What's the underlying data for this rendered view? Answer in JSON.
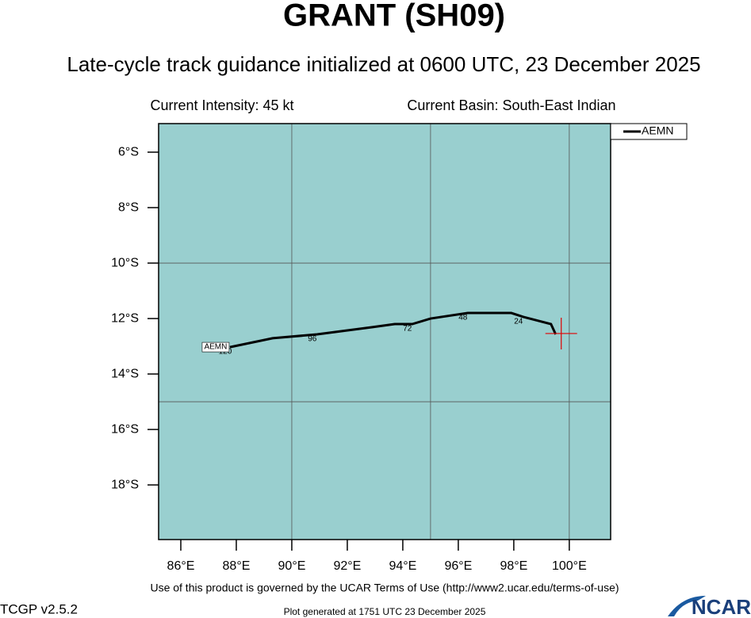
{
  "title": "GRANT (SH09)",
  "subtitle": "Late-cycle track guidance initialized at 0600 UTC, 23 December 2025",
  "info": {
    "intensity": "Current Intensity: 45 kt",
    "basin": "Current Basin: South-East Indian"
  },
  "chart_data": {
    "type": "line",
    "xlim": [
      85.2,
      101.49
    ],
    "ylim": [
      -19.97,
      -4.97
    ],
    "xticks": [
      {
        "value": 86,
        "label": "86°E"
      },
      {
        "value": 88,
        "label": "88°E"
      },
      {
        "value": 90,
        "label": "90°E"
      },
      {
        "value": 92,
        "label": "92°E"
      },
      {
        "value": 94,
        "label": "94°E"
      },
      {
        "value": 96,
        "label": "96°E"
      },
      {
        "value": 98,
        "label": "98°E"
      },
      {
        "value": 100,
        "label": "100°E"
      }
    ],
    "yticks": [
      {
        "value": -6,
        "label": "6°S"
      },
      {
        "value": -8,
        "label": "8°S"
      },
      {
        "value": -10,
        "label": "10°S"
      },
      {
        "value": -12,
        "label": "12°S"
      },
      {
        "value": -14,
        "label": "14°S"
      },
      {
        "value": -16,
        "label": "16°S"
      },
      {
        "value": -18,
        "label": "18°S"
      }
    ],
    "xgrid": [
      90,
      95,
      100
    ],
    "ygrid": [
      -10,
      -15
    ],
    "background": "#99cfcf",
    "legend": "top-right-outside",
    "series": [
      {
        "name": "AEMN",
        "color": "#000000",
        "x": [
          99.51,
          99.34,
          99.0,
          98.34,
          97.91,
          96.34,
          95.0,
          94.34,
          93.71,
          92.91,
          90.91,
          89.31,
          87.77
        ],
        "values": [
          -12.57,
          -12.2,
          -12.11,
          -11.94,
          -11.8,
          -11.8,
          -12.0,
          -12.2,
          -12.2,
          -12.31,
          -12.57,
          -12.71,
          -13.03
        ],
        "point_labels": [
          null,
          null,
          null,
          24,
          null,
          48,
          null,
          72,
          null,
          null,
          96,
          null,
          120
        ]
      }
    ],
    "current_position": {
      "x": 99.71,
      "y": -12.54,
      "color": "#e00000"
    }
  },
  "footer": {
    "terms": "Use of this product is governed by the UCAR Terms of Use (http://www2.ucar.edu/terms-of-use)",
    "version": "TCGP v2.5.2",
    "generated": "Plot generated at 1751 UTC   23 December 2025",
    "logo": "NCAR"
  }
}
